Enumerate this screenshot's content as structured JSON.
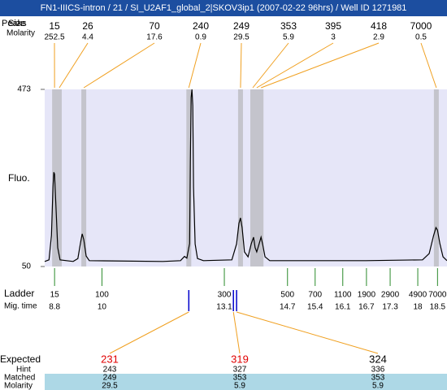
{
  "header": {
    "title": "FN1-IIICS-intron / 21 / SI_U2AF1_global_2|SKOV3ip1 (2007-02-22 96hrs) / Well ID 1271981"
  },
  "peaks": {
    "peaks_label": "Peaks",
    "size_label": "Size",
    "molarity_label": "Molarity",
    "items": [
      {
        "size": 15,
        "molarity": 252.5,
        "time": 8.8
      },
      {
        "size": 26,
        "molarity": 4.4,
        "time": 8.92
      },
      {
        "size": 70,
        "molarity": 17.6,
        "time": 9.54
      },
      {
        "size": 240,
        "molarity": 0.9,
        "time": 12.2
      },
      {
        "size": 249,
        "molarity": 29.5,
        "time": 13.51
      },
      {
        "size": 353,
        "molarity": 5.9,
        "time": 13.82
      },
      {
        "size": 395,
        "molarity": 3,
        "time": 13.92
      },
      {
        "size": 418,
        "molarity": 2.9,
        "time": 14.03
      },
      {
        "size": 7000,
        "molarity": 0.5,
        "time": 18.47
      }
    ]
  },
  "plot": {
    "y_label": "Fluo.",
    "ylim": [
      50,
      473
    ],
    "yticks": [
      50,
      473
    ],
    "xlim": [
      8.55,
      18.74
    ],
    "trace": {
      "x": [
        8.55,
        8.66,
        8.72,
        8.76,
        8.78,
        8.8,
        8.84,
        8.88,
        8.94,
        9.27,
        9.39,
        9.46,
        9.5,
        9.54,
        9.6,
        9.68,
        11.54,
        11.99,
        12.09,
        12.15,
        12.22,
        12.24,
        12.26,
        12.28,
        12.3,
        12.32,
        12.36,
        12.42,
        12.57,
        13.29,
        13.41,
        13.47,
        13.51,
        13.55,
        13.61,
        13.7,
        13.78,
        13.84,
        13.88,
        13.92,
        13.98,
        14.03,
        14.07,
        14.13,
        14.25,
        15.65,
        16.68,
        18.12,
        18.29,
        18.4,
        18.46,
        18.5,
        18.56,
        18.64,
        18.74
      ],
      "y": [
        62,
        66,
        124,
        240,
        275,
        271,
        182,
        95,
        66,
        62,
        69,
        108,
        128,
        114,
        75,
        64,
        62,
        64,
        74,
        70,
        105,
        299,
        454,
        473,
        434,
        240,
        104,
        69,
        64,
        66,
        104,
        153,
        166,
        143,
        85,
        73,
        104,
        120,
        95,
        85,
        104,
        120,
        104,
        73,
        64,
        64,
        64,
        66,
        81,
        124,
        143,
        137,
        104,
        73,
        64
      ]
    }
  },
  "ladder": {
    "label": "Ladder",
    "time_label": "Mig. time",
    "items": [
      {
        "size": 15,
        "time": 8.8
      },
      {
        "size": 100,
        "time": 10
      },
      {
        "size": 300,
        "time": 13.1
      },
      {
        "size": 500,
        "time": 14.7
      },
      {
        "size": 700,
        "time": 15.4
      },
      {
        "size": 1100,
        "time": 16.1
      },
      {
        "size": 1900,
        "time": 16.7
      },
      {
        "size": 2900,
        "time": 17.3
      },
      {
        "size": 4900,
        "time": 18
      },
      {
        "size": 7000,
        "time": 18.5
      }
    ]
  },
  "expected": {
    "label": "Expected",
    "hint_label": "Hint",
    "matched_label": "Matched",
    "molarity_label": "Molarity",
    "items": [
      {
        "expected": 231,
        "color": "#e00000",
        "hint": 243,
        "matched": 249,
        "molarity": 29.5,
        "time": 12.2
      },
      {
        "expected": 319,
        "color": "#e00000",
        "hint": 327,
        "matched": 353,
        "molarity": 5.9,
        "time": 13.33
      },
      {
        "expected": 324,
        "color": "#000000",
        "hint": 336,
        "matched": 353,
        "molarity": 5.9,
        "time": 13.41
      }
    ]
  }
}
